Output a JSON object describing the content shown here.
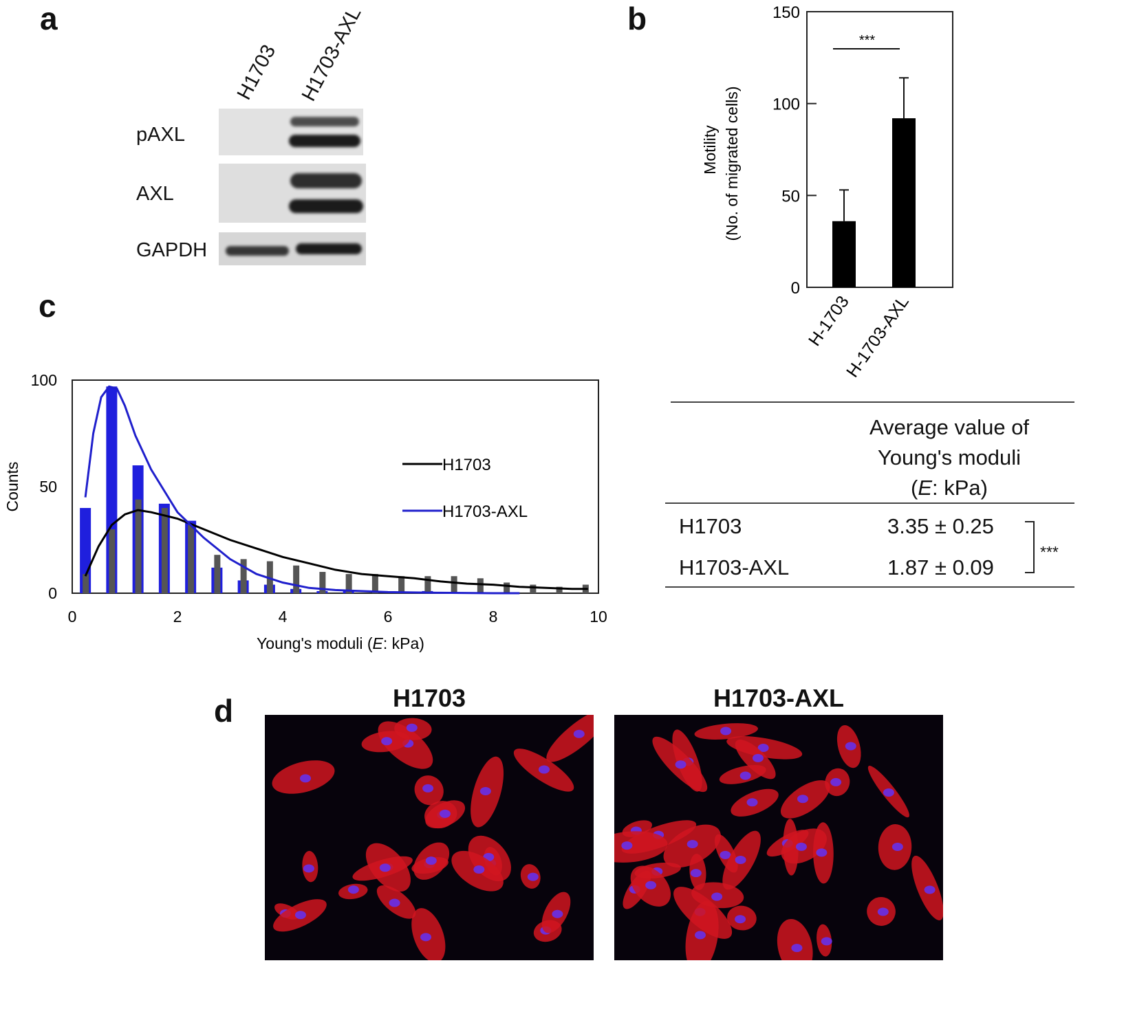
{
  "panel_a": {
    "letter": "a",
    "lanes": [
      "H1703",
      "H1703-AXL"
    ],
    "rows": [
      "pAXL",
      "AXL",
      "GAPDH"
    ]
  },
  "panel_b": {
    "letter": "b"
  },
  "panel_c": {
    "letter": "c"
  },
  "panel_d": {
    "letter": "d",
    "images": [
      "H1703",
      "H1703-AXL"
    ]
  },
  "table": {
    "header_line1": "Average value of",
    "header_line2": "Young's moduli",
    "header_line3_italic": "E",
    "header_line3_rest": ": kPa)",
    "header_line3_open": "(",
    "rows": [
      {
        "label": "H1703",
        "value": "3.35 ± 0.25"
      },
      {
        "label": "H1703-AXL",
        "value": "1.87 ± 0.09"
      }
    ],
    "significance": "***"
  },
  "chart_data": [
    {
      "panel": "b",
      "type": "bar",
      "categories": [
        "H-1703",
        "H-1703-AXL"
      ],
      "values": [
        36,
        92
      ],
      "errors": [
        17,
        22
      ],
      "ylabel_line1": "Motility",
      "ylabel_line2": "(No. of migrated cells)",
      "ylim": [
        0,
        150
      ],
      "yticks": [
        0,
        50,
        100,
        150
      ],
      "significance": "***",
      "bar_color": "#000000"
    },
    {
      "panel": "c",
      "type": "bar",
      "xlabel_prefix": "Young's moduli (",
      "xlabel_italic": "E",
      "xlabel_suffix": ": kPa)",
      "ylabel": "Counts",
      "xlim": [
        0,
        10
      ],
      "ylim": [
        0,
        100
      ],
      "xticks": [
        0,
        2,
        4,
        6,
        8,
        10
      ],
      "yticks": [
        0,
        50,
        100
      ],
      "bin_centers": [
        0.25,
        0.75,
        1.25,
        1.75,
        2.25,
        2.75,
        3.25,
        3.75,
        4.25,
        4.75,
        5.25,
        5.75,
        6.25,
        6.75,
        7.25,
        7.75,
        8.25,
        8.75,
        9.25,
        9.75
      ],
      "series": [
        {
          "name": "H1703",
          "color": "#000000",
          "bar_color": "#555555",
          "values": [
            9,
            30,
            44,
            40,
            32,
            18,
            16,
            15,
            13,
            10,
            9,
            9,
            8,
            8,
            8,
            7,
            5,
            4,
            3,
            4
          ],
          "fit": [
            [
              0.25,
              8
            ],
            [
              0.5,
              22
            ],
            [
              0.75,
              32
            ],
            [
              1.0,
              37
            ],
            [
              1.25,
              39
            ],
            [
              1.5,
              38
            ],
            [
              2.0,
              35
            ],
            [
              2.5,
              30
            ],
            [
              3.0,
              25
            ],
            [
              3.5,
              21
            ],
            [
              4.0,
              17
            ],
            [
              4.5,
              14
            ],
            [
              5.0,
              11
            ],
            [
              5.5,
              9
            ],
            [
              6.0,
              8
            ],
            [
              6.5,
              7
            ],
            [
              7.0,
              5.5
            ],
            [
              7.5,
              4.5
            ],
            [
              8.0,
              4
            ],
            [
              8.5,
              3
            ],
            [
              9.0,
              2.5
            ],
            [
              9.5,
              2
            ],
            [
              9.8,
              2
            ]
          ]
        },
        {
          "name": "H1703-AXL",
          "color": "#1f1fcc",
          "bar_color": "#1f1fdd",
          "values": [
            40,
            97,
            60,
            42,
            34,
            12,
            6,
            4,
            2,
            1,
            1,
            0,
            0,
            1,
            0,
            0,
            0,
            0,
            0,
            0
          ],
          "fit": [
            [
              0.25,
              45
            ],
            [
              0.4,
              75
            ],
            [
              0.55,
              92
            ],
            [
              0.7,
              97
            ],
            [
              0.85,
              96
            ],
            [
              1.0,
              88
            ],
            [
              1.2,
              74
            ],
            [
              1.5,
              58
            ],
            [
              1.8,
              46
            ],
            [
              2.0,
              38
            ],
            [
              2.5,
              26
            ],
            [
              3.0,
              16
            ],
            [
              3.5,
              9
            ],
            [
              4.0,
              5
            ],
            [
              4.5,
              2.5
            ],
            [
              5.0,
              1.5
            ],
            [
              6.0,
              0.5
            ],
            [
              7.0,
              0.2
            ],
            [
              8.0,
              0
            ],
            [
              8.5,
              0
            ]
          ]
        }
      ],
      "legend_position": "right"
    }
  ]
}
